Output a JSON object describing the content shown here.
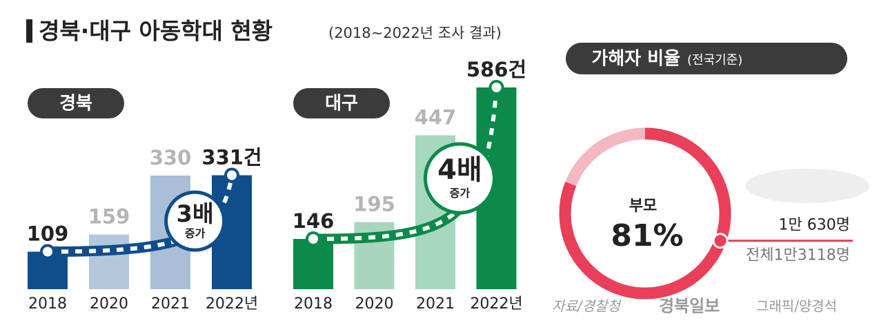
{
  "title": "경북·대구 아동학대 현황",
  "subtitle": "(2018~2022년 조사 결과)",
  "chart_data": [
    {
      "type": "bar",
      "title": "경북",
      "categories": [
        "2018",
        "2020",
        "2021",
        "2022년"
      ],
      "values": [
        109,
        159,
        330,
        331
      ],
      "value_labels": [
        "109",
        "159",
        "330",
        "331건"
      ],
      "colors": [
        "#0f4e8b",
        "#b4c7dc",
        "#a9bed7",
        "#0f4e8b"
      ],
      "annotation": "3배",
      "annotation_sub": "증가"
    },
    {
      "type": "bar",
      "title": "대구",
      "categories": [
        "2018",
        "2020",
        "2021",
        "2022년"
      ],
      "values": [
        146,
        195,
        447,
        586
      ],
      "value_labels": [
        "146",
        "195",
        "447",
        "586건"
      ],
      "colors": [
        "#0b8a4a",
        "#a9d5be",
        "#a6d8bf",
        "#0b8a4a"
      ],
      "annotation": "4배",
      "annotation_sub": "증가"
    },
    {
      "type": "donut",
      "title": "가해자 비율",
      "subtitle": "(전국기준)",
      "label": "부모",
      "values": [
        81
      ],
      "value_labels": [
        "81%"
      ],
      "color": "#ea3f58",
      "rest_color": "#f3b8c0",
      "count_label": "1만 630명",
      "total_label": "전체1만3118명"
    }
  ],
  "source": "자료/경찰청",
  "publisher": "경북일보",
  "credit": "그래픽/양경석"
}
